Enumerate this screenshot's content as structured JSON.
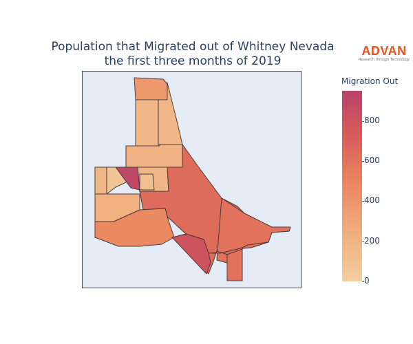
{
  "title_line1": "Population that Migrated out of Whitney Nevada",
  "title_line2": "the first three months of 2019",
  "logo": {
    "name": "ADVAN",
    "tagline": "Research through Technology"
  },
  "colorbar": {
    "title": "Migration Out",
    "range": [
      0,
      950
    ],
    "ticks": [
      "0",
      "200",
      "400",
      "600",
      "800"
    ],
    "colors": [
      "#f3cfa0",
      "#f0a877",
      "#e9805d",
      "#d55a5a",
      "#b8436a"
    ]
  },
  "regions": [
    {
      "name": "north-strip-top",
      "value": 330
    },
    {
      "name": "north-strip-middle",
      "value": 150
    },
    {
      "name": "northwest-block",
      "value": 150
    },
    {
      "name": "west-block-upper",
      "value": 170
    },
    {
      "name": "west-block-lower",
      "value": 150
    },
    {
      "name": "west-small-cell",
      "value": 90
    },
    {
      "name": "central-notch",
      "value": 60
    },
    {
      "name": "dark-wedge",
      "value": 900
    },
    {
      "name": "central-big",
      "value": 600
    },
    {
      "name": "east-arm",
      "value": 560
    },
    {
      "name": "southwest-diagonal",
      "value": 420
    },
    {
      "name": "south-center",
      "value": 600
    },
    {
      "name": "south-tail",
      "value": 560
    },
    {
      "name": "south-dark-pocket",
      "value": 780
    },
    {
      "name": "west-edge-strip",
      "value": 150
    },
    {
      "name": "west-lower-cells",
      "value": 180
    }
  ]
}
